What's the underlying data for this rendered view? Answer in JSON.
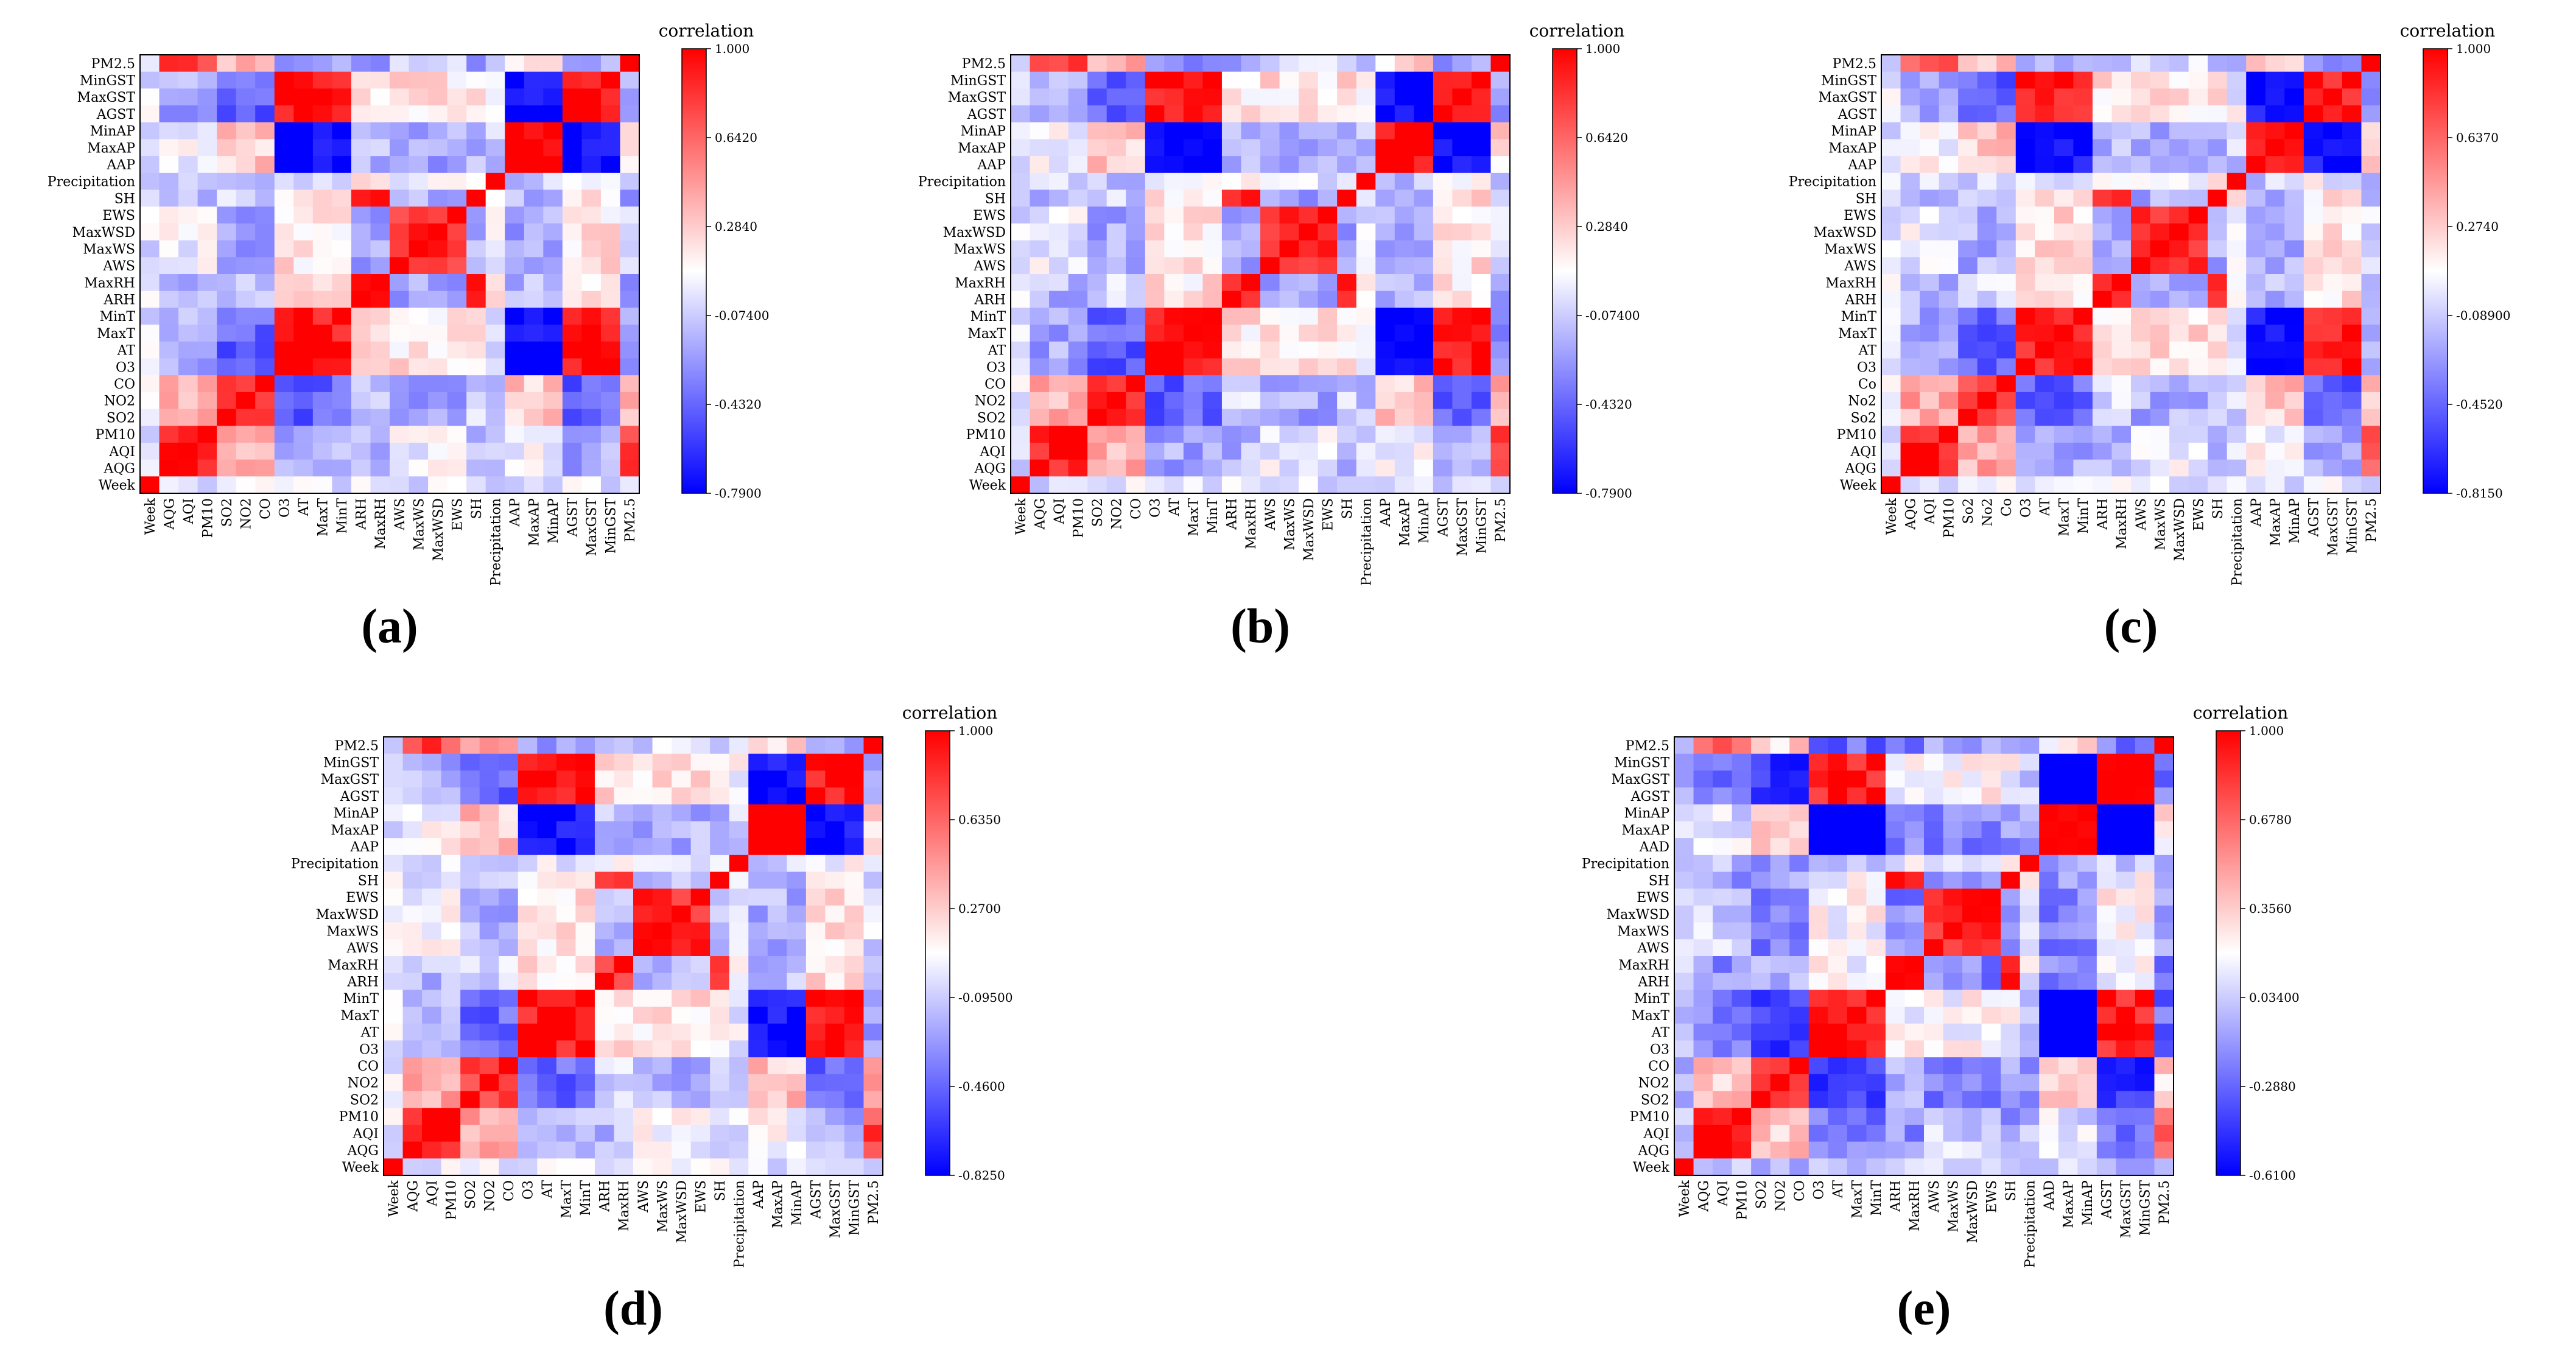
{
  "figure": {
    "colorbar_label": "correlation",
    "color_scale": {
      "low": "#0000ff",
      "mid": "#ffffff",
      "high": "#ff0000"
    }
  },
  "chart_data": [
    {
      "type": "heatmap",
      "panel_label": "(a)",
      "title": "",
      "colorbar_label": "correlation",
      "colorbar_ticks": [
        "1.000",
        "0.6420",
        "0.2840",
        "-0.07400",
        "-0.4320",
        "-0.7900"
      ],
      "vmin": -0.79,
      "vmax": 1.0,
      "rows_top_to_bottom": [
        "PM2.5",
        "MinGST",
        "MaxGST",
        "AGST",
        "MinAP",
        "MaxAP",
        "AAP",
        "Precipitation",
        "SH",
        "EWS",
        "MaxWSD",
        "MaxWS",
        "AWS",
        "MaxRH",
        "ARH",
        "MinT",
        "MaxT",
        "AT",
        "O3",
        "CO",
        "NO2",
        "SO2",
        "PM10",
        "AQI",
        "AQG",
        "Week"
      ],
      "columns_left_to_right": [
        "Week",
        "AQG",
        "AQI",
        "PM10",
        "SO2",
        "NO2",
        "CO",
        "O3",
        "AT",
        "MaxT",
        "MinT",
        "ARH",
        "MaxRH",
        "AWS",
        "MaxWS",
        "MaxWSD",
        "EWS",
        "SH",
        "Precipitation",
        "AAP",
        "MaxAP",
        "MinAP",
        "AGST",
        "MaxGST",
        "MinGST",
        "PM2.5"
      ]
    },
    {
      "type": "heatmap",
      "panel_label": "(b)",
      "title": "",
      "colorbar_label": "correlation",
      "colorbar_ticks": [
        "1.000",
        "0.6420",
        "0.2840",
        "-0.07400",
        "-0.4320",
        "-0.7900"
      ],
      "vmin": -0.79,
      "vmax": 1.0,
      "rows_top_to_bottom": [
        "PM2.5",
        "MinGST",
        "MaxGST",
        "AGST",
        "MinAP",
        "MaxAP",
        "AAP",
        "Precipitation",
        "SH",
        "EWS",
        "MaxWSD",
        "MaxWS",
        "AWS",
        "MaxRH",
        "ARH",
        "MinT",
        "MaxT",
        "AT",
        "O3",
        "CO",
        "NO2",
        "SO2",
        "PM10",
        "AQI",
        "AQG",
        "Week"
      ],
      "columns_left_to_right": [
        "Week",
        "AQG",
        "AQI",
        "PM10",
        "SO2",
        "NO2",
        "CO",
        "O3",
        "AT",
        "MaxT",
        "MinT",
        "ARH",
        "MaxRH",
        "AWS",
        "MaxWS",
        "MaxWSD",
        "EWS",
        "SH",
        "Precipitation",
        "AAP",
        "MaxAP",
        "MinAP",
        "AGST",
        "MaxGST",
        "MinGST",
        "PM2.5"
      ]
    },
    {
      "type": "heatmap",
      "panel_label": "(c)",
      "title": "",
      "colorbar_label": "correlation",
      "colorbar_ticks": [
        "1.000",
        "0.6370",
        "0.2740",
        "-0.08900",
        "-0.4520",
        "-0.8150"
      ],
      "vmin": -0.815,
      "vmax": 1.0,
      "rows_top_to_bottom": [
        "PM2.5",
        "MinGST",
        "MaxGST",
        "AGST",
        "MinAP",
        "MaxAP",
        "AAP",
        "Precipitation",
        "SH",
        "EWS",
        "MaxWSD",
        "MaxWS",
        "AWS",
        "MaxRH",
        "ARH",
        "MinT",
        "MaxT",
        "AT",
        "O3",
        "Co",
        "No2",
        "So2",
        "PM10",
        "AQI",
        "AQG",
        "Week"
      ],
      "columns_left_to_right": [
        "Week",
        "AQG",
        "AQI",
        "PM10",
        "So2",
        "No2",
        "Co",
        "O3",
        "AT",
        "MaxT",
        "MinT",
        "ARH",
        "MaxRH",
        "AWS",
        "MaxWS",
        "MaxWSD",
        "EWS",
        "SH",
        "Precipitation",
        "AAP",
        "MaxAP",
        "MinAP",
        "AGST",
        "MaxGST",
        "MinGST",
        "PM2.5"
      ]
    },
    {
      "type": "heatmap",
      "panel_label": "(d)",
      "title": "",
      "colorbar_label": "correlation",
      "colorbar_ticks": [
        "1.000",
        "0.6350",
        "0.2700",
        "-0.09500",
        "-0.4600",
        "-0.8250"
      ],
      "vmin": -0.825,
      "vmax": 1.0,
      "rows_top_to_bottom": [
        "PM2.5",
        "MinGST",
        "MaxGST",
        "AGST",
        "MinAP",
        "MaxAP",
        "AAP",
        "Precipitation",
        "SH",
        "EWS",
        "MaxWSD",
        "MaxWS",
        "AWS",
        "MaxRH",
        "ARH",
        "MinT",
        "MaxT",
        "AT",
        "O3",
        "CO",
        "NO2",
        "SO2",
        "PM10",
        "AQI",
        "AQG",
        "Week"
      ],
      "columns_left_to_right": [
        "Week",
        "AQG",
        "AQI",
        "PM10",
        "SO2",
        "NO2",
        "CO",
        "O3",
        "AT",
        "MaxT",
        "MinT",
        "ARH",
        "MaxRH",
        "AWS",
        "MaxWS",
        "MaxWSD",
        "EWS",
        "SH",
        "Precipitation",
        "AAP",
        "MaxAP",
        "MinAP",
        "AGST",
        "MaxGST",
        "MinGST",
        "PM2.5"
      ]
    },
    {
      "type": "heatmap",
      "panel_label": "(e)",
      "title": "",
      "colorbar_label": "correlation",
      "colorbar_ticks": [
        "1.000",
        "0.6780",
        "0.3560",
        "0.03400",
        "-0.2880",
        "-0.6100"
      ],
      "vmin": -0.61,
      "vmax": 1.0,
      "rows_top_to_bottom": [
        "PM2.5",
        "MinGST",
        "MaxGST",
        "AGST",
        "MinAP",
        "MaxAP",
        "AAD",
        "Precipitation",
        "SH",
        "EWS",
        "MaxWSD",
        "MaxWS",
        "AWS",
        "MaxRH",
        "ARH",
        "MinT",
        "MaxT",
        "AT",
        "O3",
        "CO",
        "NO2",
        "SO2",
        "PM10",
        "AQI",
        "AQG",
        "Week"
      ],
      "columns_left_to_right": [
        "Week",
        "AQG",
        "AQI",
        "PM10",
        "SO2",
        "NO2",
        "CO",
        "O3",
        "AT",
        "MaxT",
        "MinT",
        "ARH",
        "MaxRH",
        "AWS",
        "MaxWS",
        "MaxWSD",
        "EWS",
        "SH",
        "Precipitation",
        "AAD",
        "MaxAP",
        "MinAP",
        "AGST",
        "MaxGST",
        "MinGST",
        "PM2.5"
      ]
    }
  ]
}
